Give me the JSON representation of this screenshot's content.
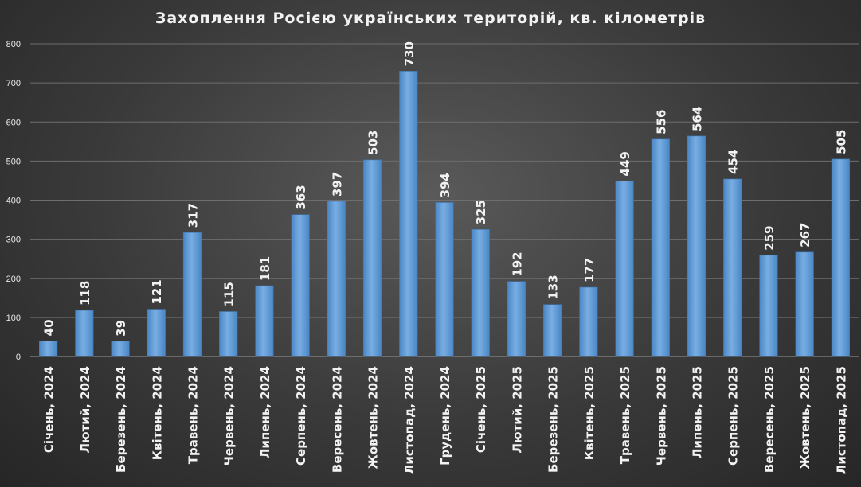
{
  "chart_data": {
    "type": "bar",
    "title": "Захоплення Росією українських територій,  кв. кілометрів",
    "xlabel": "",
    "ylabel": "",
    "ylim": [
      0,
      800
    ],
    "yticks": [
      0,
      100,
      200,
      300,
      400,
      500,
      600,
      700,
      800
    ],
    "grid": true,
    "legend": "none",
    "bar_color": "#5b9bd5",
    "categories": [
      "Січень, 2024",
      "Лютий, 2024",
      "Березень, 2024",
      "Квітень, 2024",
      "Травень, 2024",
      "Червень, 2024",
      "Липень, 2024",
      "Серпень, 2024",
      "Вересень, 2024",
      "Жовтень, 2024",
      "Листопад, 2024",
      "Грудень, 2024",
      "Січень, 2025",
      "Лютий, 2025",
      "Березень, 2025",
      "Квітень, 2025",
      "Травень, 2025",
      "Червень, 2025",
      "Липень, 2025",
      "Серпень, 2025",
      "Вересень, 2025",
      "Жовтень, 2025",
      "Листопад, 2025"
    ],
    "values": [
      40,
      118,
      39,
      121,
      317,
      115,
      181,
      363,
      397,
      503,
      730,
      394,
      325,
      192,
      133,
      177,
      449,
      556,
      564,
      454,
      259,
      267,
      505
    ]
  }
}
